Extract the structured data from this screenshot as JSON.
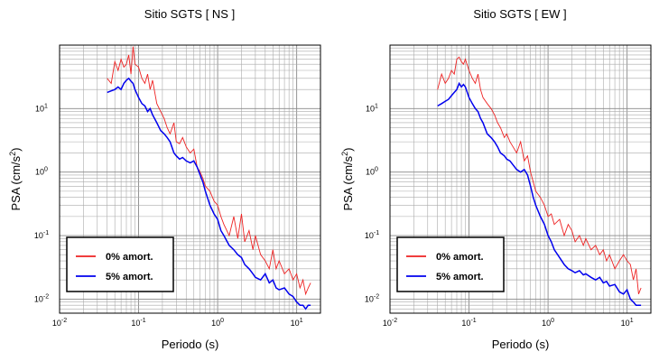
{
  "chart_data": [
    {
      "type": "line",
      "title": "Sitio SGTS [ NS ]",
      "xlabel": "Periodo (s)",
      "ylabel": "PSA (cm/s",
      "ylabel_sup": "2",
      "ylabel_end": ")",
      "xscale": "log",
      "yscale": "log",
      "xlim": [
        0.01,
        20
      ],
      "ylim": [
        0.006,
        100
      ],
      "grid": true,
      "legend_position": "bottom-left",
      "x_ticks": [
        {
          "base": "10",
          "exp": "-2"
        },
        {
          "base": "10",
          "exp": "-1"
        },
        {
          "base": "10",
          "exp": "0"
        },
        {
          "base": "10",
          "exp": "1"
        }
      ],
      "y_ticks": [
        {
          "base": "10",
          "exp": "-2"
        },
        {
          "base": "10",
          "exp": "-1"
        },
        {
          "base": "10",
          "exp": "0"
        },
        {
          "base": "10",
          "exp": "1"
        }
      ],
      "series": [
        {
          "name": "0% amort.",
          "color": "#ee2222",
          "x": [
            0.04,
            0.045,
            0.05,
            0.055,
            0.06,
            0.065,
            0.07,
            0.075,
            0.08,
            0.085,
            0.09,
            0.1,
            0.11,
            0.12,
            0.13,
            0.14,
            0.15,
            0.17,
            0.19,
            0.21,
            0.23,
            0.25,
            0.28,
            0.3,
            0.33,
            0.36,
            0.4,
            0.45,
            0.5,
            0.55,
            0.6,
            0.65,
            0.7,
            0.8,
            0.9,
            1.0,
            1.1,
            1.2,
            1.4,
            1.6,
            1.8,
            2.0,
            2.2,
            2.5,
            2.8,
            3.0,
            3.5,
            4.0,
            4.5,
            5.0,
            5.5,
            6.0,
            7.0,
            8.0,
            9.0,
            10,
            11,
            12,
            13,
            14,
            15
          ],
          "y": [
            30,
            25,
            55,
            40,
            60,
            45,
            50,
            70,
            35,
            95,
            50,
            45,
            30,
            25,
            35,
            20,
            28,
            12,
            9,
            7,
            5,
            4,
            6,
            3,
            2.8,
            3.5,
            2.5,
            2,
            2.3,
            1.2,
            1,
            0.8,
            0.6,
            0.5,
            0.35,
            0.3,
            0.2,
            0.15,
            0.1,
            0.2,
            0.09,
            0.22,
            0.08,
            0.12,
            0.06,
            0.1,
            0.05,
            0.04,
            0.03,
            0.06,
            0.03,
            0.04,
            0.025,
            0.03,
            0.02,
            0.025,
            0.015,
            0.02,
            0.012,
            0.015,
            0.018
          ]
        },
        {
          "name": "5% amort.",
          "color": "#0000ee",
          "x": [
            0.04,
            0.045,
            0.05,
            0.055,
            0.06,
            0.065,
            0.07,
            0.075,
            0.08,
            0.085,
            0.09,
            0.1,
            0.11,
            0.12,
            0.13,
            0.14,
            0.15,
            0.17,
            0.19,
            0.21,
            0.23,
            0.25,
            0.28,
            0.3,
            0.33,
            0.36,
            0.4,
            0.45,
            0.5,
            0.55,
            0.6,
            0.65,
            0.7,
            0.8,
            0.9,
            1.0,
            1.1,
            1.2,
            1.4,
            1.6,
            1.8,
            2.0,
            2.2,
            2.5,
            2.8,
            3.0,
            3.5,
            4.0,
            4.5,
            5.0,
            5.5,
            6.0,
            7.0,
            8.0,
            9.0,
            10,
            11,
            12,
            13,
            14,
            15
          ],
          "y": [
            18,
            19,
            20,
            22,
            20,
            25,
            28,
            30,
            27,
            25,
            20,
            15,
            12,
            11,
            9,
            10,
            8,
            6,
            4.5,
            4,
            3.5,
            3,
            2,
            1.8,
            1.6,
            1.7,
            1.5,
            1.4,
            1.5,
            1.2,
            0.9,
            0.7,
            0.5,
            0.3,
            0.22,
            0.18,
            0.12,
            0.1,
            0.07,
            0.06,
            0.05,
            0.045,
            0.035,
            0.03,
            0.025,
            0.022,
            0.02,
            0.025,
            0.018,
            0.02,
            0.015,
            0.014,
            0.015,
            0.012,
            0.011,
            0.009,
            0.008,
            0.008,
            0.007,
            0.008,
            0.008
          ]
        }
      ]
    },
    {
      "type": "line",
      "title": "Sitio SGTS [ EW ]",
      "xlabel": "Periodo (s)",
      "ylabel": "PSA (cm/s",
      "ylabel_sup": "2",
      "ylabel_end": ")",
      "xscale": "log",
      "yscale": "log",
      "xlim": [
        0.01,
        20
      ],
      "ylim": [
        0.006,
        100
      ],
      "grid": true,
      "legend_position": "bottom-left",
      "x_ticks": [
        {
          "base": "10",
          "exp": "-2"
        },
        {
          "base": "10",
          "exp": "-1"
        },
        {
          "base": "10",
          "exp": "0"
        },
        {
          "base": "10",
          "exp": "1"
        }
      ],
      "y_ticks": [
        {
          "base": "10",
          "exp": "-2"
        },
        {
          "base": "10",
          "exp": "-1"
        },
        {
          "base": "10",
          "exp": "0"
        },
        {
          "base": "10",
          "exp": "1"
        }
      ],
      "series": [
        {
          "name": "0% amort.",
          "color": "#ee2222",
          "x": [
            0.04,
            0.045,
            0.05,
            0.055,
            0.06,
            0.065,
            0.07,
            0.075,
            0.08,
            0.085,
            0.09,
            0.1,
            0.11,
            0.12,
            0.13,
            0.14,
            0.15,
            0.17,
            0.19,
            0.21,
            0.23,
            0.25,
            0.28,
            0.3,
            0.33,
            0.36,
            0.4,
            0.45,
            0.5,
            0.55,
            0.6,
            0.65,
            0.7,
            0.8,
            0.9,
            1.0,
            1.1,
            1.2,
            1.4,
            1.6,
            1.8,
            2.0,
            2.2,
            2.5,
            2.8,
            3.0,
            3.5,
            4.0,
            4.5,
            5.0,
            5.5,
            6.0,
            7.0,
            8.0,
            9.0,
            10,
            11,
            12,
            13,
            14,
            15
          ],
          "y": [
            20,
            35,
            25,
            30,
            40,
            35,
            60,
            65,
            55,
            50,
            60,
            40,
            30,
            25,
            35,
            20,
            15,
            12,
            10,
            8,
            6,
            5,
            3.5,
            4,
            3,
            2.5,
            2,
            3,
            1.5,
            1.8,
            1,
            0.7,
            0.5,
            0.4,
            0.3,
            0.2,
            0.22,
            0.15,
            0.18,
            0.1,
            0.15,
            0.12,
            0.08,
            0.1,
            0.07,
            0.09,
            0.06,
            0.07,
            0.05,
            0.06,
            0.04,
            0.05,
            0.03,
            0.04,
            0.05,
            0.04,
            0.035,
            0.02,
            0.03,
            0.012,
            0.015
          ]
        },
        {
          "name": "5% amort.",
          "color": "#0000ee",
          "x": [
            0.04,
            0.045,
            0.05,
            0.055,
            0.06,
            0.065,
            0.07,
            0.075,
            0.08,
            0.085,
            0.09,
            0.1,
            0.11,
            0.12,
            0.13,
            0.14,
            0.15,
            0.17,
            0.19,
            0.21,
            0.23,
            0.25,
            0.28,
            0.3,
            0.33,
            0.36,
            0.4,
            0.45,
            0.5,
            0.55,
            0.6,
            0.65,
            0.7,
            0.8,
            0.9,
            1.0,
            1.1,
            1.2,
            1.4,
            1.6,
            1.8,
            2.0,
            2.2,
            2.5,
            2.8,
            3.0,
            3.5,
            4.0,
            4.5,
            5.0,
            5.5,
            6.0,
            7.0,
            8.0,
            9.0,
            10,
            11,
            12,
            13,
            14,
            15
          ],
          "y": [
            11,
            12,
            13,
            14,
            16,
            18,
            20,
            25,
            22,
            24,
            22,
            15,
            12,
            10,
            9,
            7,
            6,
            4,
            3.5,
            3,
            2.5,
            2,
            1.8,
            1.6,
            1.5,
            1.3,
            1.1,
            1,
            1.1,
            0.9,
            0.6,
            0.4,
            0.3,
            0.2,
            0.15,
            0.1,
            0.08,
            0.06,
            0.045,
            0.035,
            0.03,
            0.028,
            0.026,
            0.028,
            0.024,
            0.025,
            0.022,
            0.02,
            0.022,
            0.018,
            0.019,
            0.016,
            0.017,
            0.013,
            0.012,
            0.014,
            0.01,
            0.009,
            0.008,
            0.008,
            0.008
          ]
        }
      ]
    }
  ]
}
